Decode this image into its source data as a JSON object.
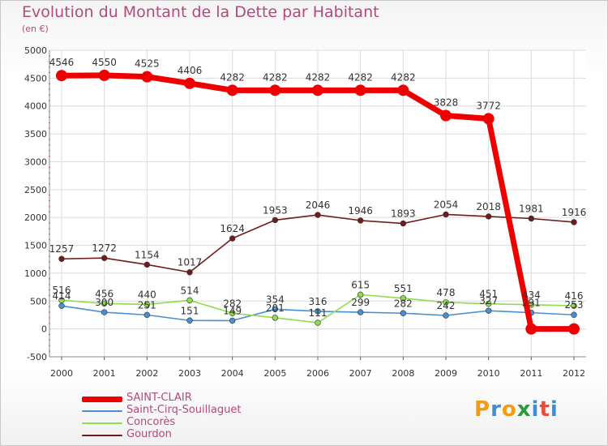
{
  "chart_data": {
    "type": "line",
    "title": "Evolution du Montant de la Dette par Habitant",
    "subtitle": "(en €)",
    "xlabel": "",
    "ylabel": "",
    "categories": [
      "2000",
      "2001",
      "2002",
      "2003",
      "2004",
      "2005",
      "2006",
      "2007",
      "2008",
      "2009",
      "2010",
      "2011",
      "2012"
    ],
    "ylim": [
      -500,
      5000
    ],
    "yticks": [
      -500,
      0,
      500,
      1000,
      1500,
      2000,
      2500,
      3000,
      3500,
      4000,
      4500,
      5000
    ],
    "ytick_labels": [
      "-500",
      "0",
      "500",
      "1000",
      "1500",
      "2000",
      "2500",
      "3000",
      "3500",
      "4000",
      "4500",
      "5000"
    ],
    "grid": true,
    "legend_position": "bottom-left",
    "series": [
      {
        "name": "SAINT-CLAIR",
        "color": "#ee0000",
        "values": [
          4546,
          4550,
          4525,
          4406,
          4282,
          4282,
          4282,
          4282,
          4282,
          3828,
          3772,
          0,
          0
        ],
        "labels": [
          "4546",
          "4550",
          "4525",
          "4406",
          "4282",
          "4282",
          "4282",
          "4282",
          "4282",
          "3828",
          "3772",
          "",
          ""
        ]
      },
      {
        "name": "Saint-Cirq-Souillaguet",
        "color": "#4a8fd0",
        "values": [
          414,
          300,
          251,
          151,
          149,
          354,
          316,
          299,
          282,
          242,
          327,
          291,
          253
        ],
        "labels": [
          "414",
          "300",
          "251",
          "151",
          "149",
          "354",
          "316",
          "299",
          "282",
          "242",
          "327",
          "291",
          "253"
        ]
      },
      {
        "name": "Concorès",
        "color": "#8fdc4c",
        "values": [
          516,
          456,
          440,
          514,
          282,
          201,
          111,
          615,
          551,
          478,
          451,
          434,
          416
        ],
        "labels": [
          "516",
          "456",
          "440",
          "514",
          "282",
          "201",
          "111",
          "615",
          "551",
          "478",
          "451",
          "434",
          "416"
        ]
      },
      {
        "name": "Gourdon",
        "color": "#6e1c1c",
        "values": [
          1257,
          1272,
          1154,
          1017,
          1624,
          1953,
          2046,
          1946,
          1893,
          2054,
          2018,
          1981,
          1916
        ],
        "labels": [
          "1257",
          "1272",
          "1154",
          "1017",
          "1624",
          "1953",
          "2046",
          "1946",
          "1893",
          "2054",
          "2018",
          "1981",
          "1916"
        ]
      }
    ]
  },
  "logo": {
    "text": "Proxiti",
    "colors": [
      "#f39c12",
      "#3a8fd8",
      "#f39c12",
      "#2a9d3b",
      "#3a8fd8",
      "#e74c3c",
      "#3a8fd8"
    ]
  }
}
